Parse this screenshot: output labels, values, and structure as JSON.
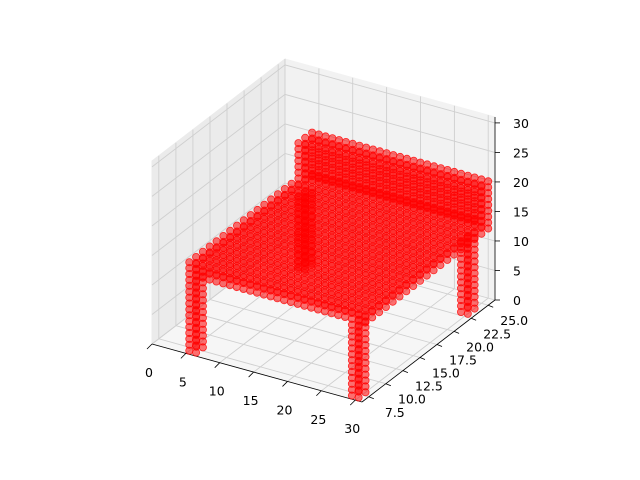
{
  "chart_data": {
    "type": "scatter",
    "projection": "3d",
    "title": "",
    "xlabel": "",
    "ylabel": "",
    "zlabel": "",
    "grid": true,
    "xlim": [
      0,
      31
    ],
    "ylim": [
      6.5,
      26
    ],
    "zlim": [
      0,
      31
    ],
    "x_ticks": [
      "0",
      "5",
      "10",
      "15",
      "20",
      "25",
      "30"
    ],
    "y_ticks": [
      "7.5",
      "10.0",
      "12.5",
      "15.0",
      "17.5",
      "20.0",
      "22.5",
      "25.0"
    ],
    "z_ticks": [
      "0",
      "5",
      "10",
      "15",
      "20",
      "25",
      "30"
    ],
    "marker_color": "#ff0000",
    "series": [
      {
        "parts": [
          {
            "part": "seat",
            "x": [
              5,
              31
            ],
            "y": [
              7,
              25
            ],
            "z": [
              13,
              15
            ]
          },
          {
            "part": "backrest",
            "x": [
              5,
              31
            ],
            "y": [
              23,
              25
            ],
            "z": [
              15,
              21
            ]
          },
          {
            "part": "leg",
            "x": [
              5,
              6
            ],
            "y": [
              7,
              8
            ],
            "z": [
              0,
              13
            ]
          },
          {
            "part": "leg",
            "x": [
              29,
              30
            ],
            "y": [
              7,
              8
            ],
            "z": [
              0,
              13
            ]
          },
          {
            "part": "leg",
            "x": [
              5,
              6
            ],
            "y": [
              23,
              24
            ],
            "z": [
              0,
              13
            ]
          },
          {
            "part": "leg",
            "x": [
              29,
              30
            ],
            "y": [
              23,
              24
            ],
            "z": [
              0,
              13
            ]
          }
        ]
      }
    ]
  }
}
